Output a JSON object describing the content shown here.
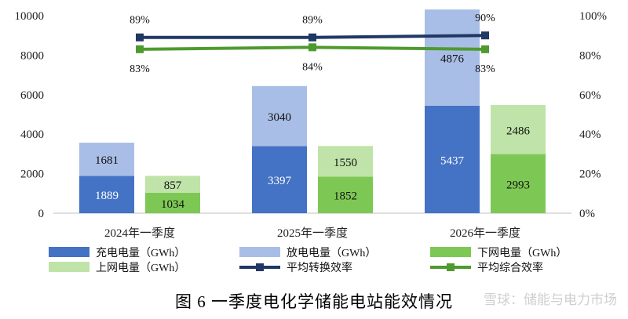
{
  "chart_data": {
    "type": "bar",
    "categories": [
      "2024年一季度",
      "2025年一季度",
      "2026年一季度"
    ],
    "series": [
      {
        "name": "充电电量（GWh）",
        "stack": "a",
        "values": [
          1889,
          3397,
          5437
        ],
        "color": "#4472c4"
      },
      {
        "name": "放电电量（GWh）",
        "stack": "a",
        "values": [
          1681,
          3040,
          4876
        ],
        "color": "#a9bee6"
      },
      {
        "name": "下网电量（GWh）",
        "stack": "b",
        "values": [
          1034,
          1852,
          2993
        ],
        "color": "#7dc855"
      },
      {
        "name": "上网电量（GWh）",
        "stack": "b",
        "values": [
          857,
          1550,
          2486
        ],
        "color": "#bfe3a8"
      }
    ],
    "line_series": [
      {
        "name": "平均转换效率",
        "values": [
          89,
          89,
          90
        ],
        "labels": [
          "89%",
          "89%",
          "90%"
        ],
        "color": "#1f3864"
      },
      {
        "name": "平均综合效率",
        "values": [
          83,
          84,
          83
        ],
        "labels": [
          "83%",
          "84%",
          "83%"
        ],
        "color": "#4f9a2f"
      }
    ],
    "y_left": {
      "ticks": [
        "0",
        "2000",
        "4000",
        "6000",
        "8000",
        "10000"
      ],
      "range": [
        0,
        10000
      ]
    },
    "y_right": {
      "ticks": [
        "0%",
        "20%",
        "40%",
        "60%",
        "80%",
        "100%"
      ],
      "range": [
        0,
        100
      ]
    },
    "legend_position": "bottom",
    "caption": "图 6  一季度电化学储能电站能效情况",
    "watermark": "雪球：储能与电力市场"
  }
}
